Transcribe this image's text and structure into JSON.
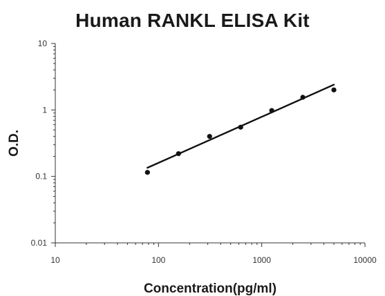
{
  "chart_data": {
    "type": "scatter",
    "title": "Human RANKL ELISA Kit",
    "xlabel": "Concentration(pg/ml)",
    "ylabel": "O.D.",
    "x_scale": "log",
    "y_scale": "log",
    "xlim": [
      10,
      10000
    ],
    "ylim": [
      0.01,
      10
    ],
    "x_ticks": [
      10,
      100,
      1000,
      10000
    ],
    "x_tick_labels": [
      "10",
      "100",
      "1000",
      "10000"
    ],
    "y_ticks": [
      0.01,
      0.1,
      1,
      10
    ],
    "y_tick_labels": [
      "0.01",
      "0.1",
      "1",
      "10"
    ],
    "grid": false,
    "legend": "none",
    "series": [
      {
        "x": [
          78.125,
          156.25,
          312.5,
          625,
          1250,
          2500,
          5000
        ],
        "y": [
          0.115,
          0.22,
          0.4,
          0.55,
          0.98,
          1.55,
          2.0
        ]
      }
    ],
    "fit_line": {
      "x": [
        78.125,
        5000
      ],
      "y": [
        0.135,
        2.4
      ]
    },
    "colors": {
      "points": "#111111",
      "line": "#111111",
      "axis": "#333333"
    }
  }
}
